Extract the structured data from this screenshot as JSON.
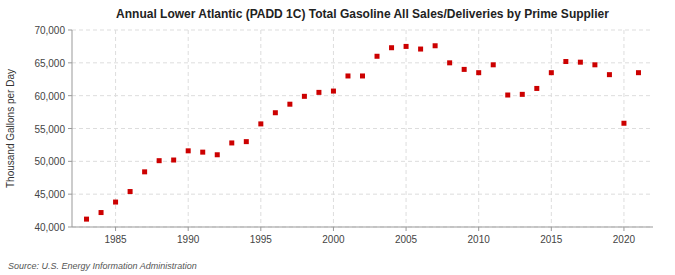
{
  "chart_data": {
    "type": "scatter",
    "title": "Annual Lower Atlantic (PADD 1C) Total Gasoline All Sales/Deliveries by Prime Supplier",
    "ylabel": "Thousand Gallons per Day",
    "source": "Source: U.S. Energy Information Administration",
    "x": [
      1983,
      1984,
      1985,
      1986,
      1987,
      1988,
      1989,
      1990,
      1991,
      1992,
      1993,
      1994,
      1995,
      1996,
      1997,
      1998,
      1999,
      2000,
      2001,
      2002,
      2003,
      2004,
      2005,
      2006,
      2007,
      2008,
      2009,
      2010,
      2011,
      2012,
      2013,
      2014,
      2015,
      2016,
      2017,
      2018,
      2019,
      2020,
      2021
    ],
    "values": [
      41200,
      42200,
      43800,
      45400,
      48400,
      50100,
      50200,
      51600,
      51400,
      51000,
      52800,
      53000,
      55700,
      57400,
      58700,
      59900,
      60500,
      60700,
      63000,
      63000,
      66000,
      67300,
      67500,
      67100,
      67600,
      65000,
      64000,
      63500,
      64700,
      60100,
      60200,
      61100,
      63500,
      65200,
      65100,
      64700,
      63200,
      55800,
      63500
    ],
    "color": "#cc0000",
    "marker": "square",
    "xlim": [
      1982,
      2022
    ],
    "ylim": [
      40000,
      70000
    ],
    "xticks": [
      1985,
      1990,
      1995,
      2000,
      2005,
      2010,
      2015,
      2020
    ],
    "yticks": [
      {
        "value": 40000,
        "label": "40,000"
      },
      {
        "value": 45000,
        "label": "45,000"
      },
      {
        "value": 50000,
        "label": "50,000"
      },
      {
        "value": 55000,
        "label": "55,000"
      },
      {
        "value": 60000,
        "label": "60,000"
      },
      {
        "value": 65000,
        "label": "65,000"
      },
      {
        "value": 70000,
        "label": "70,000"
      }
    ],
    "grid": true
  }
}
